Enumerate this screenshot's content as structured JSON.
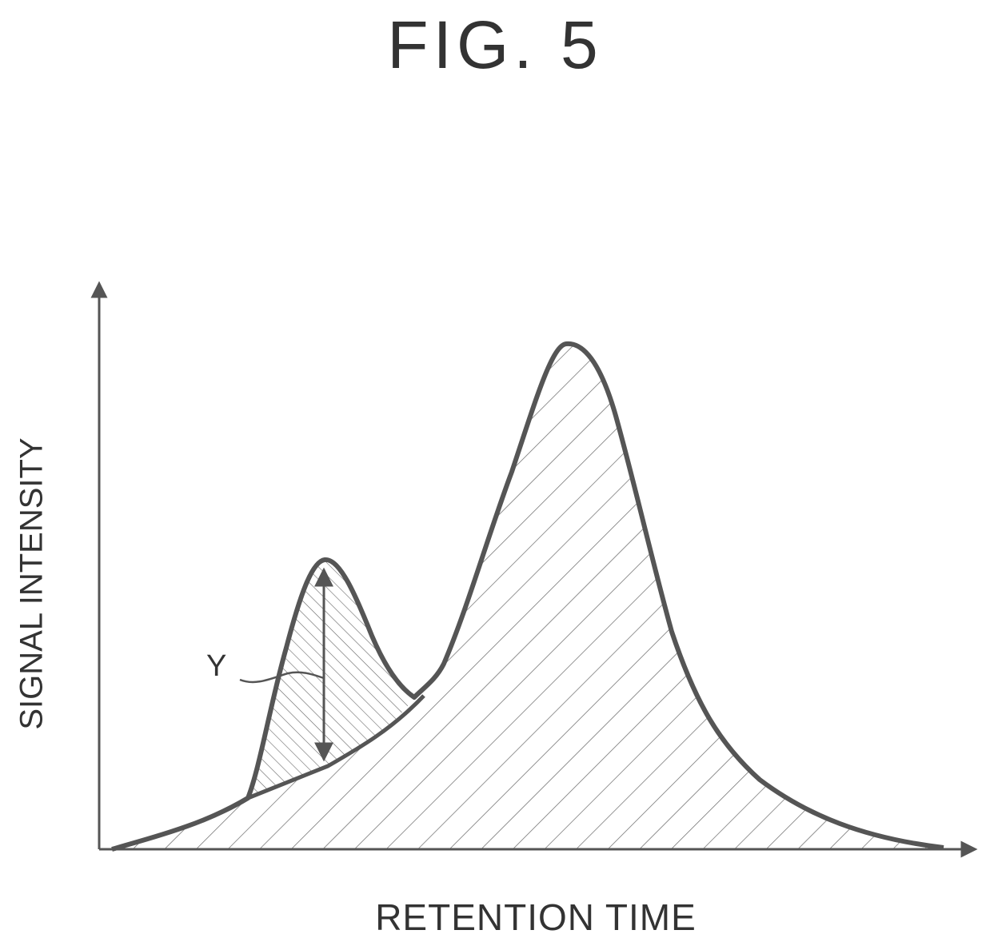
{
  "figure": {
    "title": "FIG. 5",
    "x_axis_label": "RETENTION TIME",
    "y_axis_label": "SIGNAL INTENSITY",
    "peak_marker_label": "Y"
  },
  "colors": {
    "line": "#555555",
    "hatch": "#666666",
    "background": "#ffffff"
  }
}
